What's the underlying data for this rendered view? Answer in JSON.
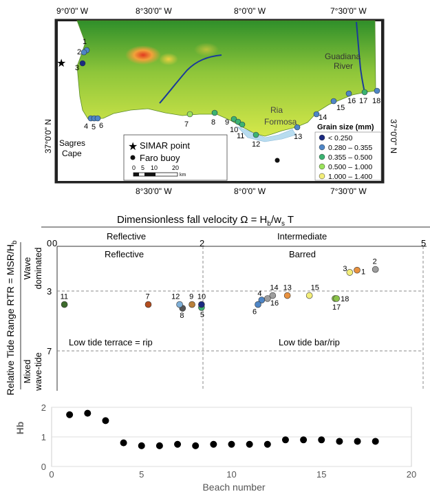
{
  "map": {
    "lon_labels_top": [
      "9°0'0\" W",
      "8°30'0\" W",
      "8°0'0\" W",
      "7°30'0\" W"
    ],
    "lon_labels_bottom": [
      "8°30'0\" W",
      "8°0'0\" W",
      "7°30'0\" W"
    ],
    "lat_label": "37°0'0\" N",
    "lat_label_right": "37°0'0\" N",
    "place_labels": {
      "sagres": "Sagres",
      "cape": "Cape",
      "ria": "Ria",
      "formosa": "Formosa",
      "guadiana": "Guadiana",
      "river": "River"
    },
    "beaches": [
      {
        "n": "1",
        "color": "#4f86c6"
      },
      {
        "n": "2",
        "color": "#4f86c6"
      },
      {
        "n": "3",
        "color": "#1b2a80"
      },
      {
        "n": "4",
        "color": "#4f86c6"
      },
      {
        "n": "5",
        "color": "#4f86c6"
      },
      {
        "n": "6",
        "color": "#4f86c6"
      },
      {
        "n": "7",
        "color": "#9be35c"
      },
      {
        "n": "8",
        "color": "#3cb371"
      },
      {
        "n": "9",
        "color": "#3cb371"
      },
      {
        "n": "10",
        "color": "#3cb371"
      },
      {
        "n": "11",
        "color": "#3cb371"
      },
      {
        "n": "12",
        "color": "#3cb371"
      },
      {
        "n": "13",
        "color": "#4f86c6"
      },
      {
        "n": "14",
        "color": "#4f86c6"
      },
      {
        "n": "15",
        "color": "#4f86c6"
      },
      {
        "n": "16",
        "color": "#4f86c6"
      },
      {
        "n": "17",
        "color": "#3cb371"
      },
      {
        "n": "18",
        "color": "#4f86c6"
      }
    ],
    "legend_points": {
      "simar": "SIMAR point",
      "faro": "Faro buoy",
      "scale_ticks": [
        "0",
        "5",
        "10",
        "20"
      ],
      "scale_unit": "km"
    },
    "grain_legend": {
      "title": "Grain size (mm)",
      "items": [
        {
          "label": "< 0.250",
          "color": "#1b2a80"
        },
        {
          "label": "0.280 – 0.355",
          "color": "#4f86c6"
        },
        {
          "label": "0.355 – 0.500",
          "color": "#3cb371"
        },
        {
          "label": "0.500 – 1.000",
          "color": "#9be35c"
        },
        {
          "label": "1.000 – 1.400",
          "color": "#f3ee7a"
        }
      ]
    }
  },
  "diagram": {
    "top_title": "Dimensionless fall velocity  Ω = H",
    "top_title_sub_b": "b",
    "top_title_mid": "/w",
    "top_title_sub_s": "s",
    "top_title_end": " T",
    "top_ticks": [
      "0",
      "2",
      "5"
    ],
    "top_region_reflective": "Reflective",
    "top_region_intermediate": "Intermediate",
    "y_axis_label": "Relative Tide Range  RTR = MSR/H",
    "y_axis_sub": "b",
    "y_ticks": [
      "0",
      "3",
      "7"
    ],
    "wave_dominated": [
      "Wave",
      "dominated"
    ],
    "mixed": [
      "Mixed",
      "wave-tide"
    ],
    "region_reflective": "Reflective",
    "region_barred": "Barred",
    "region_terrace": "Low tide terrace = rip",
    "region_bar_rip": "Low tide bar/rip",
    "points": [
      {
        "n": "1",
        "omega": 4.1,
        "rtr": 1.6,
        "color": "#e8913f"
      },
      {
        "n": "2",
        "omega": 4.35,
        "rtr": 1.55,
        "color": "#9e9e9e"
      },
      {
        "n": "3",
        "omega": 4.0,
        "rtr": 1.75,
        "color": "#f3ee7a"
      },
      {
        "n": "4",
        "omega": 2.8,
        "rtr": 3.6,
        "color": "#4f86c6"
      },
      {
        "n": "5",
        "omega": 1.98,
        "rtr": 4.1,
        "color": "#3cb371"
      },
      {
        "n": "6",
        "omega": 2.75,
        "rtr": 3.9,
        "color": "#4f86c6"
      },
      {
        "n": "7",
        "omega": 1.25,
        "rtr": 3.9,
        "color": "#b34d1e"
      },
      {
        "n": "8",
        "omega": 1.72,
        "rtr": 4.15,
        "color": "#555555"
      },
      {
        "n": "9",
        "omega": 1.85,
        "rtr": 3.9,
        "color": "#b9813a"
      },
      {
        "n": "10",
        "omega": 1.98,
        "rtr": 3.9,
        "color": "#1b2a80"
      },
      {
        "n": "11",
        "omega": 0.1,
        "rtr": 3.9,
        "color": "#3d6b2c"
      },
      {
        "n": "12",
        "omega": 1.68,
        "rtr": 3.9,
        "color": "#7fb0d8"
      },
      {
        "n": "13",
        "omega": 3.15,
        "rtr": 3.3,
        "color": "#e8913f"
      },
      {
        "n": "14",
        "omega": 2.95,
        "rtr": 3.3,
        "color": "#9e9e9e"
      },
      {
        "n": "15",
        "omega": 3.45,
        "rtr": 3.3,
        "color": "#f3ee7a"
      },
      {
        "n": "16",
        "omega": 2.88,
        "rtr": 3.5,
        "color": "#9e9e9e"
      },
      {
        "n": "17",
        "omega": 3.8,
        "rtr": 3.5,
        "color": "#8bc34a"
      },
      {
        "n": "18",
        "omega": 3.82,
        "rtr": 3.5,
        "color": "#8bc34a"
      }
    ]
  },
  "chart_data": {
    "type": "scatter",
    "xlabel": "Beach number",
    "ylabel": "Hb",
    "xlim": [
      0,
      20
    ],
    "ylim": [
      0,
      2
    ],
    "x_ticks": [
      "0",
      "5",
      "10",
      "15",
      "20"
    ],
    "y_ticks": [
      "0",
      "1",
      "2"
    ],
    "x": [
      1,
      2,
      3,
      4,
      5,
      6,
      7,
      8,
      9,
      10,
      11,
      12,
      13,
      14,
      15,
      16,
      17,
      18
    ],
    "y": [
      1.75,
      1.8,
      1.55,
      0.8,
      0.7,
      0.7,
      0.75,
      0.7,
      0.75,
      0.75,
      0.75,
      0.75,
      0.9,
      0.9,
      0.9,
      0.85,
      0.85,
      0.85
    ],
    "grid": true,
    "legend": "none"
  }
}
